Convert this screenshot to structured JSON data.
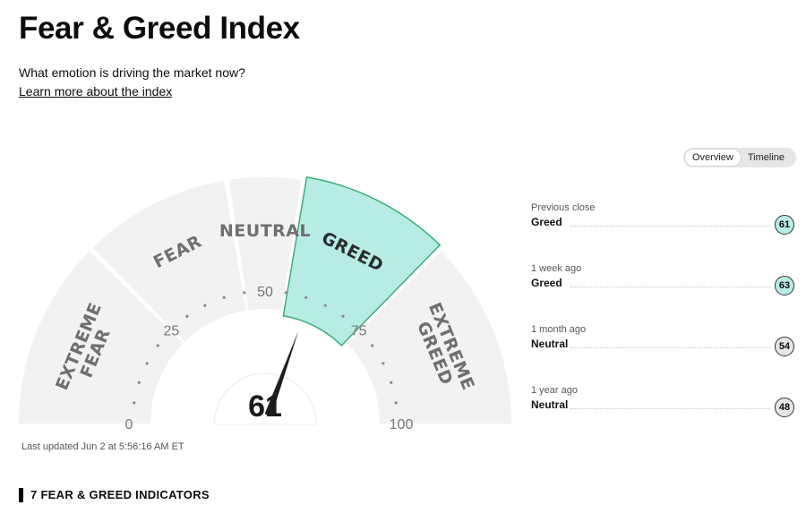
{
  "page": {
    "title": "Fear & Greed Index",
    "subtitle": "What emotion is driving the market now?",
    "learn_more": "Learn more about the index"
  },
  "toggle": {
    "overview": "Overview",
    "timeline": "Timeline",
    "active": "overview"
  },
  "gauge": {
    "value": 61,
    "value_label": "61",
    "current_zone": "GREED",
    "zones": [
      {
        "key": "extreme-fear",
        "lines": [
          "EXTREME",
          "FEAR"
        ],
        "from": 0,
        "to": 25
      },
      {
        "key": "fear",
        "lines": [
          "FEAR"
        ],
        "from": 25,
        "to": 45
      },
      {
        "key": "neutral",
        "lines": [
          "NEUTRAL"
        ],
        "from": 45,
        "to": 55
      },
      {
        "key": "greed",
        "lines": [
          "GREED"
        ],
        "from": 55,
        "to": 75
      },
      {
        "key": "extreme-greed",
        "lines": [
          "EXTREME",
          "GREED"
        ],
        "from": 75,
        "to": 100
      }
    ],
    "ticks": [
      {
        "value": 0,
        "label": "0"
      },
      {
        "value": 25,
        "label": "25"
      },
      {
        "value": 50,
        "label": "50"
      },
      {
        "value": 75,
        "label": "75"
      },
      {
        "value": 100,
        "label": "100"
      }
    ],
    "colors": {
      "zone": "#f2f2f2",
      "active_zone": "#b7ece5",
      "active_border": "#3aad7a",
      "zone_text": "#6f6f6f",
      "active_text": "#2b2b2b",
      "needle": "#1e1e1e"
    }
  },
  "last_updated": "Last updated Jun 2 at 5:56:16 AM ET",
  "history": [
    {
      "period": "Previous close",
      "rating": "Greed",
      "value": "61",
      "kind": "greed"
    },
    {
      "period": "1 week ago",
      "rating": "Greed",
      "value": "63",
      "kind": "greed"
    },
    {
      "period": "1 month ago",
      "rating": "Neutral",
      "value": "54",
      "kind": "neutral"
    },
    {
      "period": "1 year ago",
      "rating": "Neutral",
      "value": "48",
      "kind": "neutral"
    }
  ],
  "indicators_heading": "7 FEAR & GREED INDICATORS"
}
